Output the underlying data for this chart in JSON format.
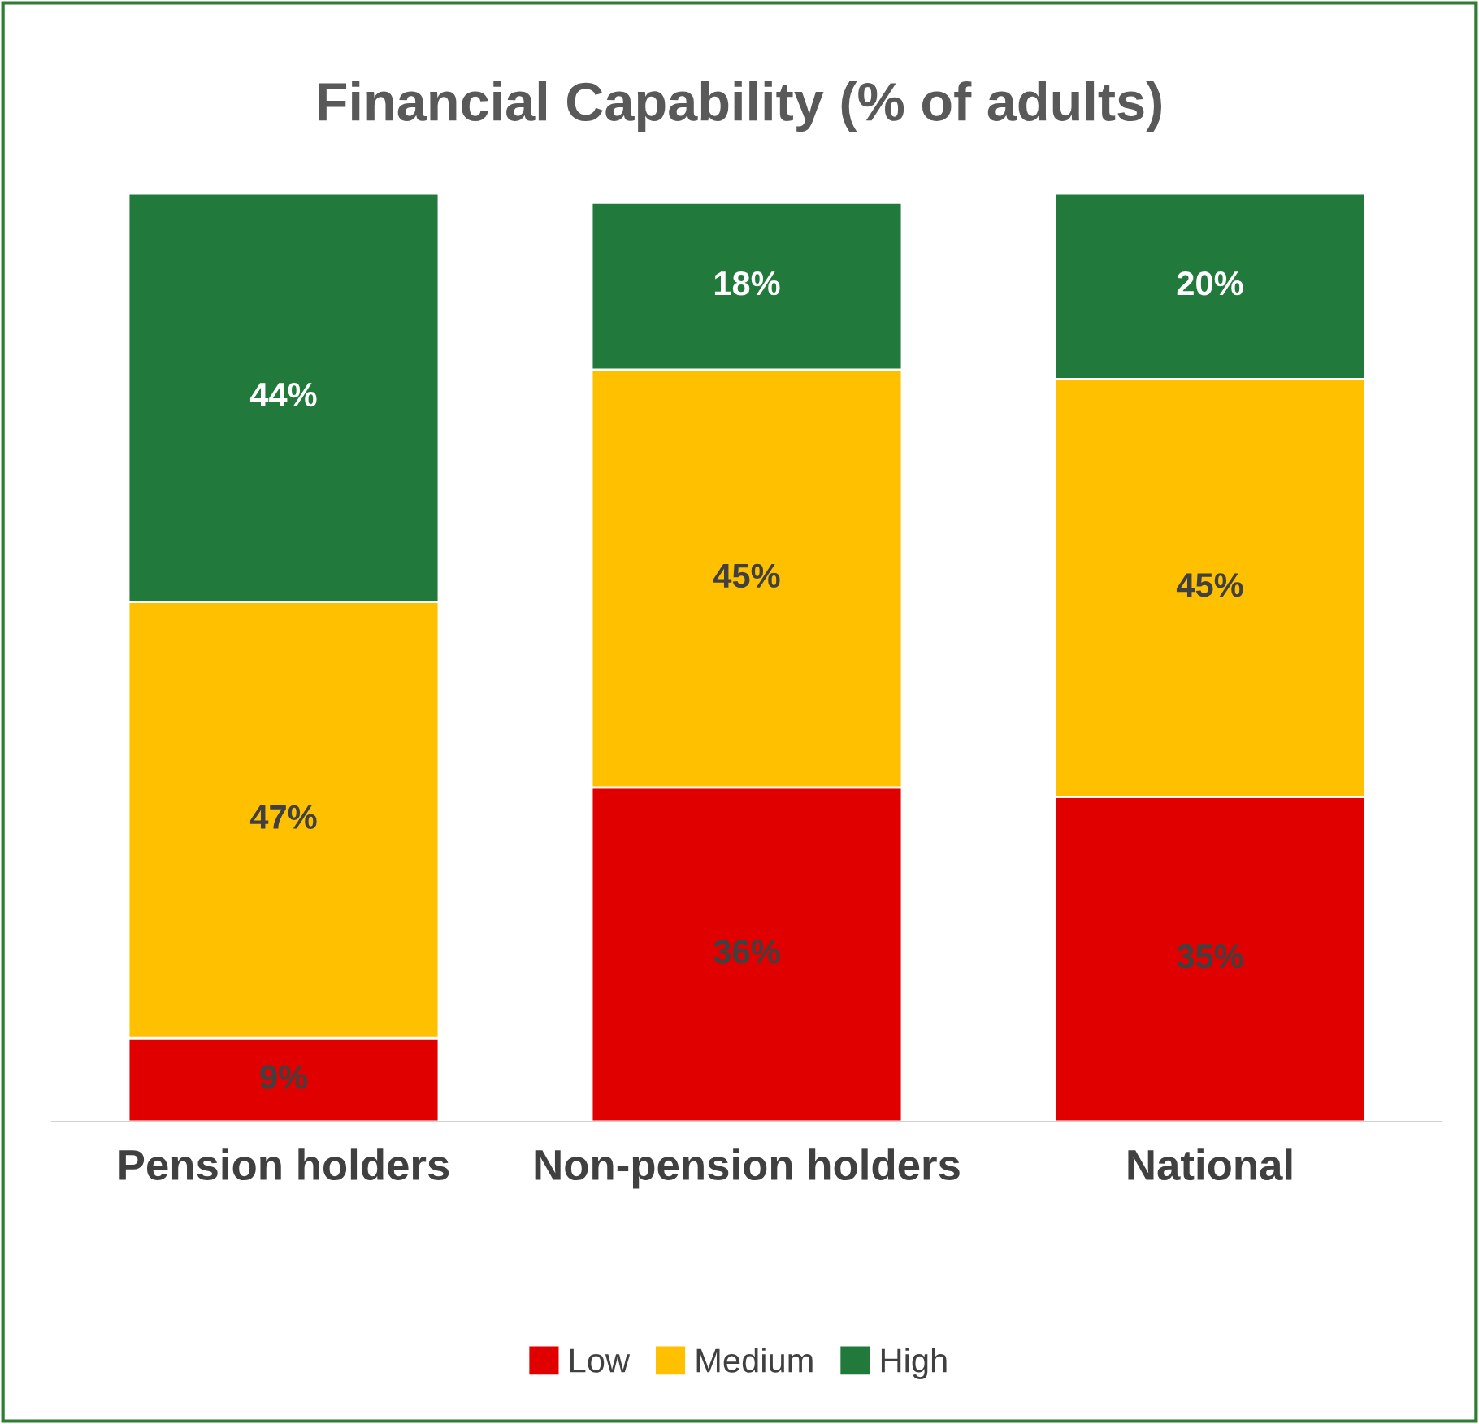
{
  "chart_data": {
    "type": "bar",
    "title": "Financial Capability (% of adults)",
    "stacked": true,
    "categories": [
      "Pension holders",
      "Non-pension holders",
      "National"
    ],
    "series": [
      {
        "name": "Low",
        "color": "#e00000",
        "values": [
          9,
          36,
          35
        ],
        "value_labels": [
          "9%",
          "36%",
          "35%"
        ]
      },
      {
        "name": "Medium",
        "color": "#ffc000",
        "values": [
          47,
          45,
          45
        ],
        "value_labels": [
          "47%",
          "45%",
          "45%"
        ]
      },
      {
        "name": "High",
        "color": "#217a3c",
        "values": [
          44,
          18,
          20
        ],
        "value_labels": [
          "44%",
          "18%",
          "20%"
        ]
      }
    ],
    "tick_labels": "x",
    "grid": false,
    "legend": "bottom"
  }
}
